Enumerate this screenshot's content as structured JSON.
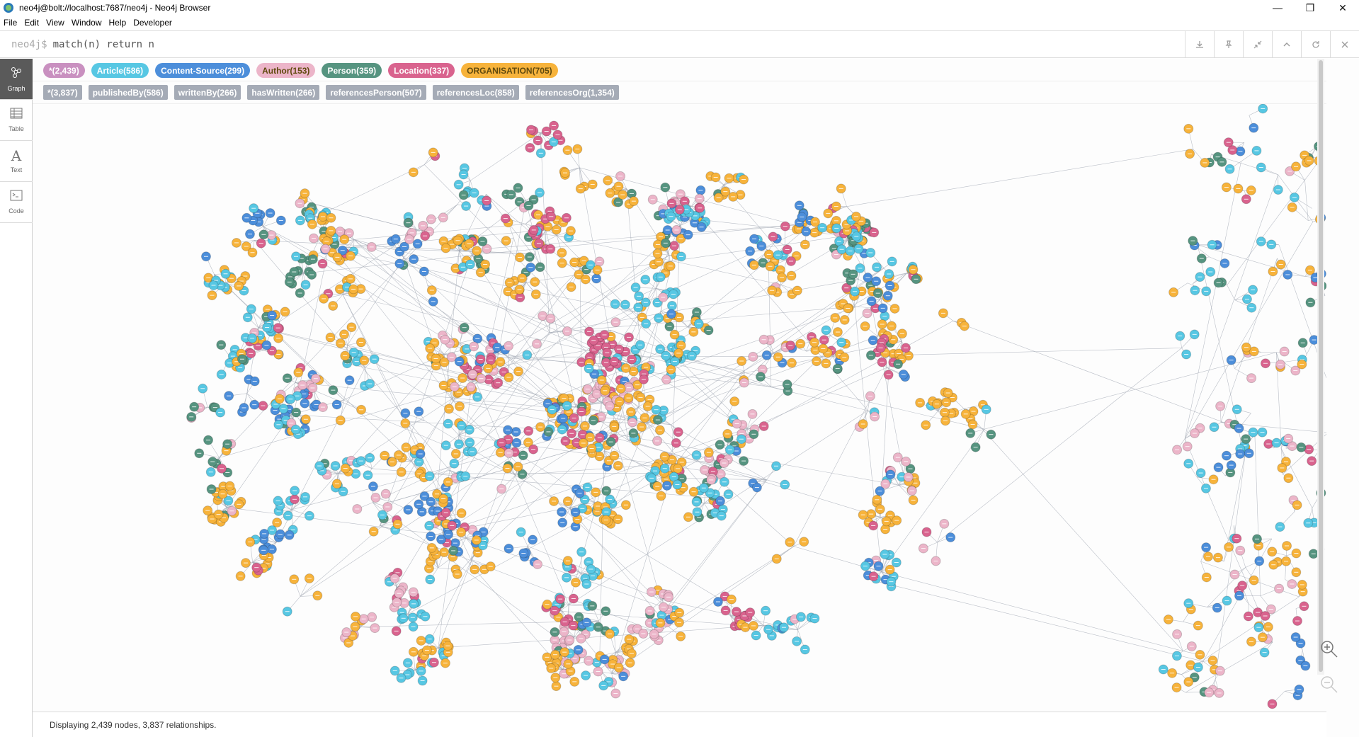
{
  "window": {
    "title": "neo4j@bolt://localhost:7687/neo4j - Neo4j Browser",
    "controls": {
      "minimize": "—",
      "restore": "❒",
      "close": "✕"
    }
  },
  "menu": [
    "File",
    "Edit",
    "View",
    "Window",
    "Help",
    "Developer"
  ],
  "editor": {
    "prompt": "neo4j$",
    "query": "match(n) return n",
    "actions": [
      "download-icon",
      "pin-icon",
      "collapse-icon",
      "chevron-up-icon",
      "refresh-icon",
      "close-icon"
    ]
  },
  "sidebar": [
    {
      "label": "Graph",
      "icon": "graph-icon",
      "active": true
    },
    {
      "label": "Table",
      "icon": "table-icon",
      "active": false
    },
    {
      "label": "Text",
      "icon": "text-icon",
      "active": false
    },
    {
      "label": "Code",
      "icon": "code-icon",
      "active": false
    }
  ],
  "node_labels": [
    {
      "text": "*(2,439)",
      "color": "#c990c0",
      "text_color": "#ffffff"
    },
    {
      "text": "Article(586)",
      "color": "#57c7e3",
      "text_color": "#ffffff"
    },
    {
      "text": "Content-Source(299)",
      "color": "#4c8eda",
      "text_color": "#ffffff"
    },
    {
      "text": "Author(153)",
      "color": "#ecb5c9",
      "text_color": "#604a0e"
    },
    {
      "text": "Person(359)",
      "color": "#569480",
      "text_color": "#ffffff"
    },
    {
      "text": "Location(337)",
      "color": "#d9638e",
      "text_color": "#ffffff"
    },
    {
      "text": "ORGANISATION(705)",
      "color": "#f7b33b",
      "text_color": "#604a0e"
    }
  ],
  "relationship_types": [
    "*(3,837)",
    "publishedBy(586)",
    "writtenBy(266)",
    "hasWritten(266)",
    "referencesPerson(507)",
    "referencesLoc(858)",
    "referencesOrg(1,354)"
  ],
  "status": "Displaying 2,439 nodes, 3,837 relationships.",
  "colors": {
    "article": "#57c7e3",
    "content_source": "#4c8eda",
    "author": "#ecb5c9",
    "person": "#569480",
    "location": "#d9638e",
    "organisation": "#f7b33b",
    "relationship": "#a5abb6"
  }
}
